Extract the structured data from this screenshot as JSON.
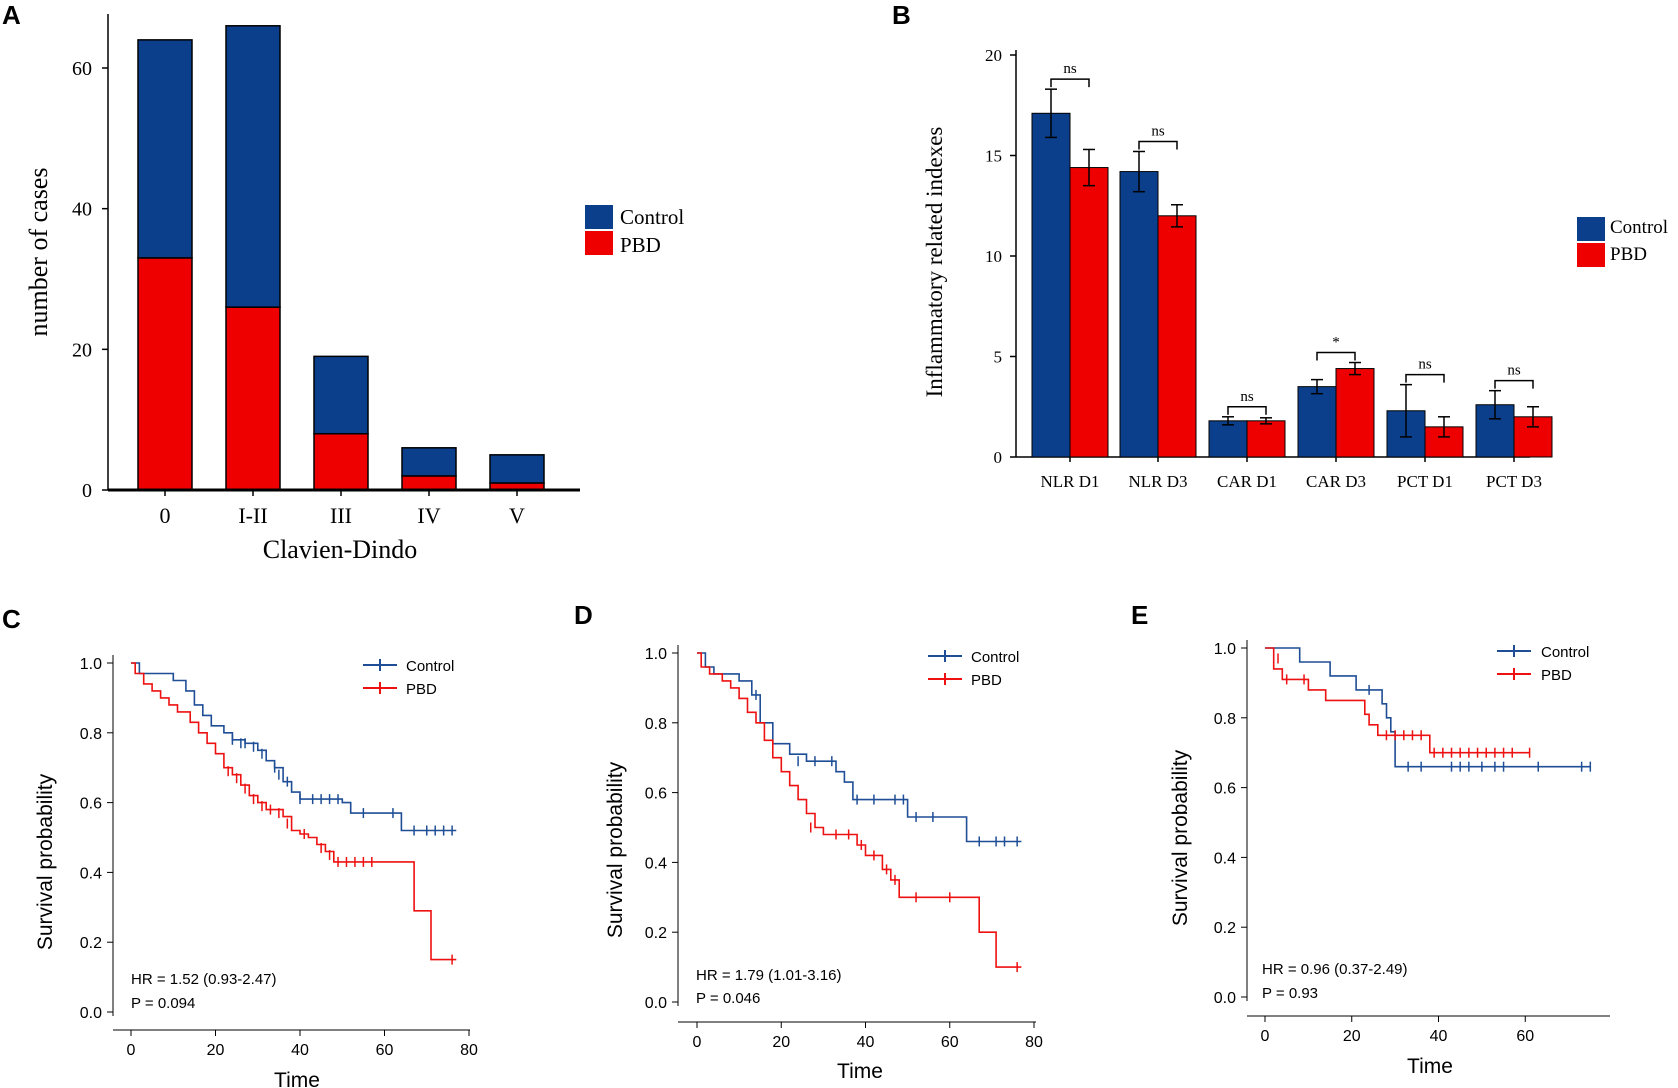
{
  "colors": {
    "control": "#0b3f8c",
    "pbd": "#ee0000",
    "km_control": "#1f4e96",
    "km_pbd": "#ee1111",
    "axis": "#000000"
  },
  "chart_data": [
    {
      "id": "A",
      "panel_label": "A",
      "type": "bar",
      "stacked": true,
      "categories": [
        "0",
        "I-II",
        "III",
        "IV",
        "V"
      ],
      "series": [
        {
          "name": "PBD",
          "values": [
            33,
            26,
            8,
            2,
            1
          ]
        },
        {
          "name": "Control",
          "values": [
            31,
            40,
            11,
            4,
            4
          ]
        }
      ],
      "totals": [
        64,
        66,
        19,
        6,
        5
      ],
      "legend": [
        "Control",
        "PBD"
      ],
      "legend_position": "right",
      "xlabel": "Clavien-Dindo",
      "ylabel": "number of cases",
      "ylim": [
        0,
        66
      ],
      "yticks": [
        0,
        20,
        40,
        60
      ]
    },
    {
      "id": "B",
      "panel_label": "B",
      "type": "bar",
      "grouped": true,
      "categories": [
        "NLR D1",
        "NLR D3",
        "CAR D1",
        "CAR D3",
        "PCT D1",
        "PCT D3"
      ],
      "series": [
        {
          "name": "Control",
          "values": [
            17.1,
            14.2,
            1.8,
            3.5,
            2.3,
            2.6
          ],
          "errors": [
            1.2,
            1.0,
            0.2,
            0.35,
            1.3,
            0.7
          ]
        },
        {
          "name": "PBD",
          "values": [
            14.4,
            12.0,
            1.8,
            4.4,
            1.5,
            2.0
          ],
          "errors": [
            0.9,
            0.55,
            0.15,
            0.3,
            0.5,
            0.5
          ]
        }
      ],
      "significance": [
        "ns",
        "ns",
        "ns",
        "*",
        "ns",
        "ns"
      ],
      "legend": [
        "Control",
        "PBD"
      ],
      "legend_position": "right",
      "xlabel": "",
      "ylabel": "Inflammatory related indexes",
      "ylim": [
        0,
        20
      ],
      "yticks": [
        0,
        5,
        10,
        15,
        20
      ]
    },
    {
      "id": "C",
      "panel_label": "C",
      "type": "line",
      "subtype": "kaplan-meier",
      "xlabel": "Time",
      "ylabel": "Survival probability",
      "xlim": [
        0,
        80
      ],
      "ylim": [
        0,
        1.0
      ],
      "xticks": [
        0,
        20,
        40,
        60,
        80
      ],
      "yticks": [
        "0.0",
        "0.2",
        "0.4",
        "0.6",
        "0.8",
        "1.0"
      ],
      "legend": [
        "Control",
        "PBD"
      ],
      "annotation": [
        "HR = 1.52 (0.93-2.47)",
        "P = 0.094"
      ],
      "series": [
        {
          "name": "Control",
          "steps": [
            [
              0,
              1.0
            ],
            [
              2,
              0.97
            ],
            [
              8,
              0.97
            ],
            [
              10,
              0.95
            ],
            [
              13,
              0.92
            ],
            [
              15,
              0.88
            ],
            [
              17,
              0.85
            ],
            [
              19,
              0.82
            ],
            [
              22,
              0.8
            ],
            [
              24,
              0.78
            ],
            [
              27,
              0.77
            ],
            [
              30,
              0.75
            ],
            [
              32,
              0.72
            ],
            [
              34,
              0.7
            ],
            [
              36,
              0.66
            ],
            [
              38,
              0.63
            ],
            [
              40,
              0.61
            ],
            [
              50,
              0.6
            ],
            [
              52,
              0.57
            ],
            [
              64,
              0.52
            ],
            [
              77,
              0.52
            ]
          ],
          "censors": [
            [
              24,
              0.78
            ],
            [
              26,
              0.77
            ],
            [
              27,
              0.77
            ],
            [
              29,
              0.76
            ],
            [
              31,
              0.74
            ],
            [
              34,
              0.7
            ],
            [
              35,
              0.68
            ],
            [
              37,
              0.66
            ],
            [
              40,
              0.61
            ],
            [
              43,
              0.61
            ],
            [
              45,
              0.61
            ],
            [
              47,
              0.61
            ],
            [
              49,
              0.61
            ],
            [
              55,
              0.57
            ],
            [
              62,
              0.57
            ],
            [
              67,
              0.52
            ],
            [
              70,
              0.52
            ],
            [
              72,
              0.52
            ],
            [
              74,
              0.52
            ],
            [
              76,
              0.52
            ]
          ]
        },
        {
          "name": "PBD",
          "steps": [
            [
              0,
              1.0
            ],
            [
              1,
              0.97
            ],
            [
              3,
              0.94
            ],
            [
              5,
              0.92
            ],
            [
              7,
              0.9
            ],
            [
              9,
              0.88
            ],
            [
              11,
              0.86
            ],
            [
              14,
              0.83
            ],
            [
              16,
              0.8
            ],
            [
              18,
              0.77
            ],
            [
              20,
              0.74
            ],
            [
              22,
              0.7
            ],
            [
              24,
              0.68
            ],
            [
              26,
              0.65
            ],
            [
              28,
              0.62
            ],
            [
              30,
              0.6
            ],
            [
              32,
              0.58
            ],
            [
              36,
              0.56
            ],
            [
              38,
              0.52
            ],
            [
              40,
              0.51
            ],
            [
              42,
              0.5
            ],
            [
              44,
              0.48
            ],
            [
              46,
              0.46
            ],
            [
              48,
              0.43
            ],
            [
              67,
              0.29
            ],
            [
              71,
              0.15
            ],
            [
              77,
              0.15
            ]
          ],
          "censors": [
            [
              23,
              0.69
            ],
            [
              25,
              0.67
            ],
            [
              27,
              0.64
            ],
            [
              29,
              0.61
            ],
            [
              31,
              0.59
            ],
            [
              33,
              0.58
            ],
            [
              35,
              0.57
            ],
            [
              37,
              0.54
            ],
            [
              41,
              0.51
            ],
            [
              45,
              0.47
            ],
            [
              47,
              0.45
            ],
            [
              49,
              0.43
            ],
            [
              51,
              0.43
            ],
            [
              53,
              0.43
            ],
            [
              55,
              0.43
            ],
            [
              57,
              0.43
            ],
            [
              76,
              0.15
            ]
          ]
        }
      ]
    },
    {
      "id": "D",
      "panel_label": "D",
      "type": "line",
      "subtype": "kaplan-meier",
      "xlabel": "Time",
      "ylabel": "Survival probability",
      "xlim": [
        0,
        80
      ],
      "ylim": [
        0,
        1.0
      ],
      "xticks": [
        0,
        20,
        40,
        60,
        80
      ],
      "yticks": [
        "0.0",
        "0.2",
        "0.4",
        "0.6",
        "0.8",
        "1.0"
      ],
      "legend": [
        "Control",
        "PBD"
      ],
      "annotation": [
        "HR = 1.79 (1.01-3.16)",
        "P = 0.046"
      ],
      "series": [
        {
          "name": "Control",
          "steps": [
            [
              0,
              1.0
            ],
            [
              2,
              0.96
            ],
            [
              4,
              0.94
            ],
            [
              10,
              0.92
            ],
            [
              13,
              0.88
            ],
            [
              15,
              0.8
            ],
            [
              18,
              0.74
            ],
            [
              22,
              0.71
            ],
            [
              26,
              0.69
            ],
            [
              33,
              0.66
            ],
            [
              35,
              0.63
            ],
            [
              37,
              0.58
            ],
            [
              50,
              0.53
            ],
            [
              64,
              0.46
            ],
            [
              77,
              0.46
            ]
          ],
          "censors": [
            [
              14,
              0.88
            ],
            [
              24,
              0.69
            ],
            [
              28,
              0.69
            ],
            [
              32,
              0.69
            ],
            [
              38,
              0.58
            ],
            [
              42,
              0.58
            ],
            [
              47,
              0.58
            ],
            [
              49,
              0.58
            ],
            [
              52,
              0.53
            ],
            [
              56,
              0.53
            ],
            [
              67,
              0.46
            ],
            [
              71,
              0.46
            ],
            [
              73,
              0.46
            ],
            [
              76,
              0.46
            ]
          ]
        },
        {
          "name": "PBD",
          "steps": [
            [
              0,
              1.0
            ],
            [
              1,
              0.96
            ],
            [
              3,
              0.94
            ],
            [
              6,
              0.92
            ],
            [
              8,
              0.9
            ],
            [
              10,
              0.87
            ],
            [
              12,
              0.83
            ],
            [
              14,
              0.8
            ],
            [
              16,
              0.75
            ],
            [
              18,
              0.7
            ],
            [
              20,
              0.66
            ],
            [
              22,
              0.62
            ],
            [
              24,
              0.58
            ],
            [
              26,
              0.54
            ],
            [
              28,
              0.5
            ],
            [
              30,
              0.48
            ],
            [
              38,
              0.45
            ],
            [
              40,
              0.42
            ],
            [
              44,
              0.38
            ],
            [
              46,
              0.35
            ],
            [
              48,
              0.3
            ],
            [
              67,
              0.2
            ],
            [
              71,
              0.1
            ],
            [
              77,
              0.1
            ]
          ],
          "censors": [
            [
              27,
              0.5
            ],
            [
              33,
              0.48
            ],
            [
              36,
              0.48
            ],
            [
              39,
              0.45
            ],
            [
              42,
              0.42
            ],
            [
              45,
              0.38
            ],
            [
              47,
              0.35
            ],
            [
              52,
              0.3
            ],
            [
              60,
              0.3
            ],
            [
              76,
              0.1
            ]
          ]
        }
      ]
    },
    {
      "id": "E",
      "panel_label": "E",
      "type": "line",
      "subtype": "kaplan-meier",
      "xlabel": "Time",
      "ylabel": "Survival probability",
      "xlim": [
        0,
        80
      ],
      "ylim": [
        0,
        1.0
      ],
      "xticks": [
        0,
        20,
        40,
        60
      ],
      "yticks": [
        "0.0",
        "0.2",
        "0.4",
        "0.6",
        "0.8",
        "1.0"
      ],
      "legend": [
        "Control",
        "PBD"
      ],
      "annotation": [
        "HR = 0.96 (0.37-2.49)",
        "P = 0.93"
      ],
      "series": [
        {
          "name": "Control",
          "steps": [
            [
              0,
              1.0
            ],
            [
              8,
              0.96
            ],
            [
              15,
              0.92
            ],
            [
              21,
              0.88
            ],
            [
              27,
              0.84
            ],
            [
              28,
              0.8
            ],
            [
              29,
              0.76
            ],
            [
              30,
              0.66
            ],
            [
              75,
              0.66
            ]
          ],
          "censors": [
            [
              24,
              0.88
            ],
            [
              33,
              0.66
            ],
            [
              36,
              0.66
            ],
            [
              43,
              0.66
            ],
            [
              45,
              0.66
            ],
            [
              47,
              0.66
            ],
            [
              50,
              0.66
            ],
            [
              53,
              0.66
            ],
            [
              55,
              0.66
            ],
            [
              63,
              0.66
            ],
            [
              73,
              0.66
            ],
            [
              75,
              0.66
            ]
          ]
        },
        {
          "name": "PBD",
          "steps": [
            [
              0,
              1.0
            ],
            [
              2,
              0.94
            ],
            [
              4,
              0.91
            ],
            [
              10,
              0.88
            ],
            [
              14,
              0.85
            ],
            [
              23,
              0.81
            ],
            [
              24,
              0.78
            ],
            [
              26,
              0.75
            ],
            [
              38,
              0.7
            ],
            [
              61,
              0.7
            ]
          ],
          "censors": [
            [
              3,
              0.97
            ],
            [
              5,
              0.91
            ],
            [
              9,
              0.91
            ],
            [
              28,
              0.75
            ],
            [
              30,
              0.75
            ],
            [
              32,
              0.75
            ],
            [
              34,
              0.75
            ],
            [
              36,
              0.75
            ],
            [
              39,
              0.7
            ],
            [
              41,
              0.7
            ],
            [
              43,
              0.7
            ],
            [
              45,
              0.7
            ],
            [
              47,
              0.7
            ],
            [
              49,
              0.7
            ],
            [
              51,
              0.7
            ],
            [
              53,
              0.7
            ],
            [
              55,
              0.7
            ],
            [
              57,
              0.7
            ],
            [
              61,
              0.7
            ]
          ]
        }
      ]
    }
  ]
}
